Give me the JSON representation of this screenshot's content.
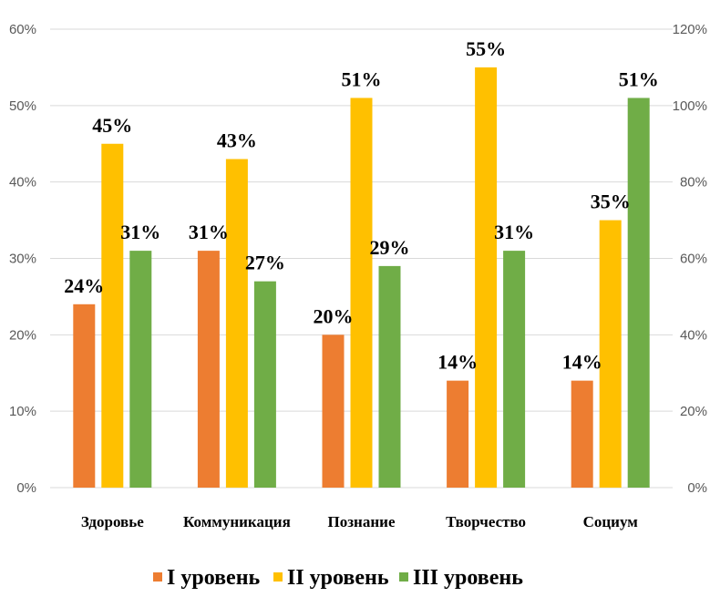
{
  "chart_data": {
    "type": "bar",
    "categories": [
      "Здоровье",
      "Коммуникация",
      "Познание",
      "Творчество",
      "Социум"
    ],
    "series": [
      {
        "name": "I уровень",
        "values": [
          24,
          31,
          20,
          14,
          14
        ],
        "color": "#ED7D31"
      },
      {
        "name": "II уровень",
        "values": [
          45,
          43,
          51,
          55,
          35
        ],
        "color": "#FFC000"
      },
      {
        "name": "III уровень",
        "values": [
          31,
          27,
          29,
          31,
          51
        ],
        "color": "#70AD47"
      }
    ],
    "data_labels": [
      [
        "24%",
        "31%",
        "20%",
        "14%",
        "14%"
      ],
      [
        "45%",
        "43%",
        "51%",
        "55%",
        "35%"
      ],
      [
        "31%",
        "27%",
        "29%",
        "31%",
        "51%"
      ]
    ],
    "ylim": [
      0,
      60
    ],
    "y_ticks": [
      "0%",
      "10%",
      "20%",
      "30%",
      "40%",
      "50%",
      "60%"
    ],
    "ylim_right": [
      0,
      120
    ],
    "y_ticks_right": [
      "0%",
      "20%",
      "40%",
      "60%",
      "80%",
      "100%",
      "120%"
    ],
    "grid": true,
    "legend_position": "bottom"
  }
}
